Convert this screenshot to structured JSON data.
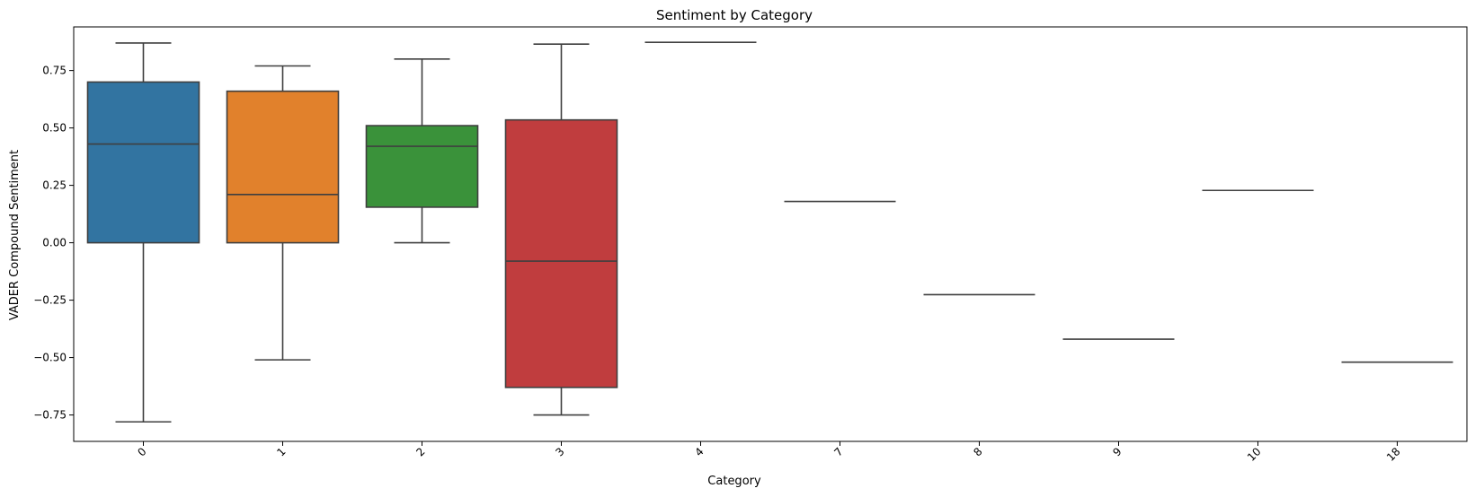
{
  "chart_data": {
    "type": "box",
    "title": "Sentiment by Category",
    "xlabel": "Category",
    "ylabel": "VADER Compound Sentiment",
    "ylim": [
      -0.865,
      0.94
    ],
    "yticks": [
      -0.75,
      -0.5,
      -0.25,
      0.0,
      0.25,
      0.5,
      0.75
    ],
    "ytick_labels": [
      "−0.75",
      "−0.50",
      "−0.25",
      "0.00",
      "0.25",
      "0.50",
      "0.75"
    ],
    "grid": false,
    "xtick_rotation": 45,
    "categories": [
      "0",
      "1",
      "2",
      "3",
      "4",
      "7",
      "8",
      "9",
      "10",
      "18"
    ],
    "boxes": [
      {
        "category": "0",
        "whisker_low": -0.78,
        "q1": 0.0,
        "median": 0.43,
        "q3": 0.7,
        "whisker_high": 0.87,
        "color": "#3274a1"
      },
      {
        "category": "1",
        "whisker_low": -0.51,
        "q1": 0.0,
        "median": 0.21,
        "q3": 0.66,
        "whisker_high": 0.77,
        "color": "#e1812c"
      },
      {
        "category": "2",
        "whisker_low": 0.0,
        "q1": 0.155,
        "median": 0.42,
        "q3": 0.51,
        "whisker_high": 0.8,
        "color": "#3a923a"
      },
      {
        "category": "3",
        "whisker_low": -0.75,
        "q1": -0.63,
        "median": -0.08,
        "q3": 0.535,
        "whisker_high": 0.865,
        "color": "#c03d3e"
      },
      {
        "category": "4",
        "whisker_low": 0.873,
        "q1": 0.873,
        "median": 0.873,
        "q3": 0.873,
        "whisker_high": 0.873,
        "color": "#9372b2"
      },
      {
        "category": "7",
        "whisker_low": 0.18,
        "q1": 0.18,
        "median": 0.18,
        "q3": 0.18,
        "whisker_high": 0.18,
        "color": "#845b53"
      },
      {
        "category": "8",
        "whisker_low": -0.226,
        "q1": -0.226,
        "median": -0.226,
        "q3": -0.226,
        "whisker_high": -0.226,
        "color": "#d684bd"
      },
      {
        "category": "9",
        "whisker_low": -0.42,
        "q1": -0.42,
        "median": -0.42,
        "q3": -0.42,
        "whisker_high": -0.42,
        "color": "#7f7f7f"
      },
      {
        "category": "10",
        "whisker_low": 0.228,
        "q1": 0.228,
        "median": 0.228,
        "q3": 0.228,
        "whisker_high": 0.228,
        "color": "#a9aa35"
      },
      {
        "category": "18",
        "whisker_low": -0.52,
        "q1": -0.52,
        "median": -0.52,
        "q3": -0.52,
        "whisker_high": -0.52,
        "color": "#2ea8b6"
      }
    ],
    "edge_color": "#3f3f3f"
  }
}
